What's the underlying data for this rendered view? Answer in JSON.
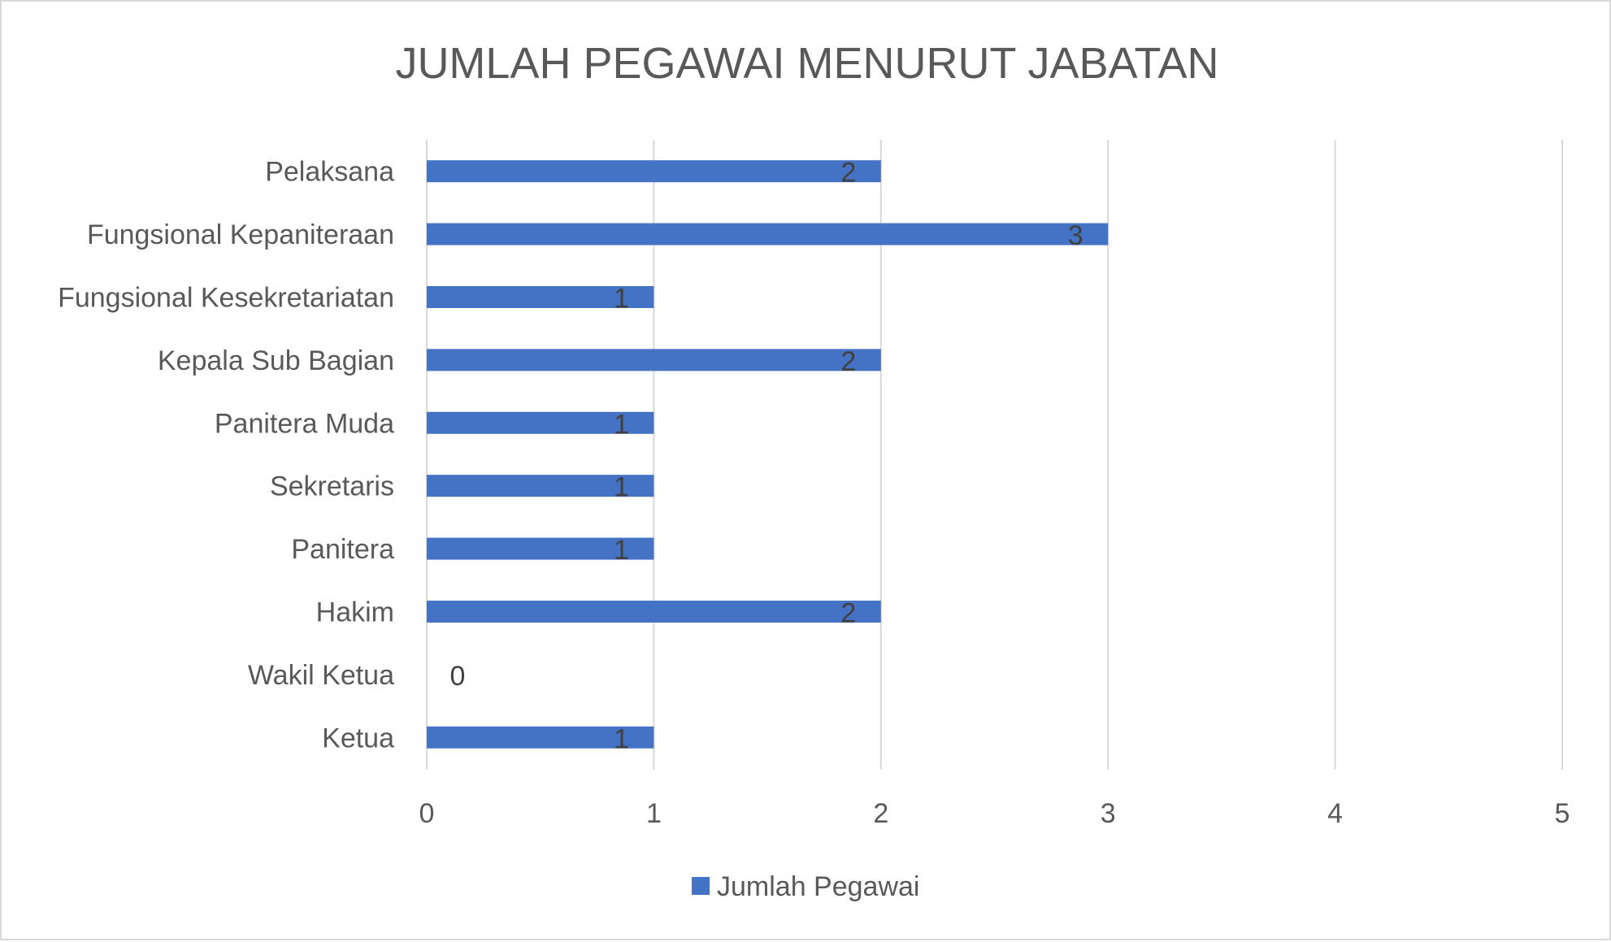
{
  "chart_data": {
    "type": "bar",
    "orientation": "horizontal",
    "title": "JUMLAH PEGAWAI MENURUT JABATAN",
    "categories": [
      "Ketua",
      "Wakil Ketua",
      "Hakim",
      "Panitera",
      "Sekretaris",
      "Panitera Muda",
      "Kepala Sub Bagian",
      "Fungsional Kesekretariatan",
      "Fungsional Kepaniteraan",
      "Pelaksana"
    ],
    "series": [
      {
        "name": "Jumlah Pegawai",
        "values": [
          1,
          0,
          2,
          1,
          1,
          1,
          2,
          1,
          3,
          2
        ],
        "color": "#4472c4"
      }
    ],
    "xlim": [
      0,
      5
    ],
    "xticks": [
      "0",
      "1",
      "2",
      "3",
      "4",
      "5"
    ],
    "xlabel": "",
    "ylabel": "",
    "grid": "vertical",
    "legend": "bottom",
    "data_labels": true
  }
}
